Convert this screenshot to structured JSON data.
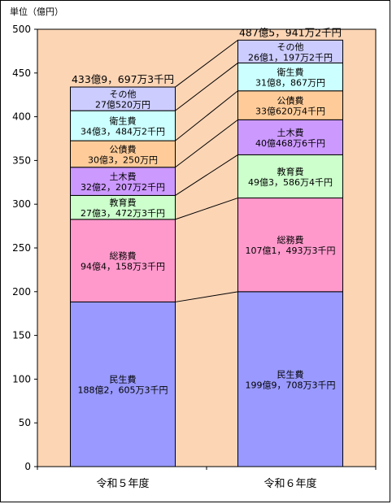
{
  "chart_data": {
    "type": "bar",
    "stacked": true,
    "unit": "単位（億円）",
    "ylim": [
      0,
      500
    ],
    "yticks": [
      0,
      50,
      100,
      150,
      200,
      250,
      300,
      350,
      400,
      450,
      500
    ],
    "grid": false,
    "colors": {
      "plot_background": "#fcd5b5",
      "民生費": "#9999ff",
      "総務費": "#ff99cc",
      "教育費": "#ccffcc",
      "土木費": "#cc99ff",
      "公債費": "#ffcc99",
      "衛生費": "#ccffff",
      "その他": "#ccccff"
    },
    "categories": [
      "令和５年度",
      "令和６年度"
    ],
    "totals": [
      433.9697,
      487.5941
    ],
    "total_labels": [
      "433億9，697万3千円",
      "487億5，941万2千円"
    ],
    "series": [
      {
        "name": "民生費",
        "values": [
          188.2605,
          199.9708
        ],
        "labels": [
          "188億2，605万3千円",
          "199億9，708万3千円"
        ]
      },
      {
        "name": "総務費",
        "values": [
          94.4158,
          107.1493
        ],
        "labels": [
          "94億4，158万3千円",
          "107億1，493万3千円"
        ]
      },
      {
        "name": "教育費",
        "values": [
          27.3472,
          49.3586
        ],
        "labels": [
          "27億3，472万3千円",
          "49億3，586万4千円"
        ]
      },
      {
        "name": "土木費",
        "values": [
          32.2207,
          40.0468
        ],
        "labels": [
          "32億2，207万2千円",
          "40億468万6千円"
        ]
      },
      {
        "name": "公債費",
        "values": [
          30.325,
          33.062
        ],
        "labels": [
          "30億3，250万円",
          "33億620万4千円"
        ]
      },
      {
        "name": "衛生費",
        "values": [
          34.3484,
          31.8867
        ],
        "labels": [
          "34億3，484万2千円",
          "31億8，867万円"
        ]
      },
      {
        "name": "その他",
        "values": [
          27.052,
          26.1197
        ],
        "labels": [
          "27億520万円",
          "26億1，197万2千円"
        ]
      }
    ]
  }
}
